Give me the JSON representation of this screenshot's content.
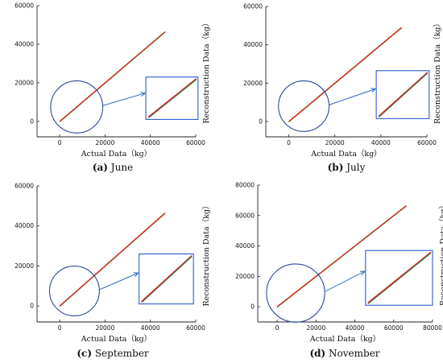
{
  "chart_data": [
    {
      "type": "line",
      "panel_letter": "(a)",
      "caption": "June",
      "xlabel": "Actual Data（kg）",
      "ylabel": "Reconstruction Data（kg）",
      "xlim": [
        -10000,
        60000
      ],
      "ylim": [
        -8000,
        60000
      ],
      "xticks": [
        0,
        20000,
        40000,
        60000
      ],
      "yticks": [
        0,
        20000,
        40000,
        60000
      ],
      "series": [
        {
          "x": [
            0,
            46500
          ],
          "values": [
            0,
            46500
          ],
          "color": "#d62b1f"
        }
      ],
      "inset_circle": {
        "cx": 7500,
        "cy": 7500,
        "r": 11500
      },
      "inset_box": {
        "x0": 38000,
        "x1": 61000,
        "y0": 1000,
        "y1": 23000
      }
    },
    {
      "type": "line",
      "panel_letter": "(b)",
      "caption": "July",
      "xlabel": "Actual Data（kg）",
      "ylabel": "Reconstruction Data（kg）",
      "xlim": [
        -10000,
        60000
      ],
      "ylim": [
        -8000,
        60000
      ],
      "xticks": [
        0,
        20000,
        40000,
        60000
      ],
      "yticks": [
        0,
        20000,
        40000,
        60000
      ],
      "series": [
        {
          "x": [
            0,
            49000
          ],
          "values": [
            0,
            49000
          ],
          "color": "#d62b1f"
        }
      ],
      "inset_circle": {
        "cx": 6500,
        "cy": 8000,
        "r": 11000
      },
      "inset_box": {
        "x0": 38000,
        "x1": 61000,
        "y0": 1500,
        "y1": 26500
      }
    },
    {
      "type": "line",
      "panel_letter": "(c)",
      "caption": "September",
      "xlabel": "Actual Data（kg）",
      "ylabel": "Reconstruction Data（kg）",
      "xlim": [
        -10000,
        60000
      ],
      "ylim": [
        -8000,
        60000
      ],
      "xticks": [
        0,
        20000,
        40000,
        60000
      ],
      "yticks": [
        0,
        20000,
        40000,
        60000
      ],
      "series": [
        {
          "x": [
            0,
            46500
          ],
          "values": [
            0,
            46500
          ],
          "color": "#d62b1f"
        }
      ],
      "inset_circle": {
        "cx": 6500,
        "cy": 7500,
        "r": 11000
      },
      "inset_box": {
        "x0": 35000,
        "x1": 59000,
        "y0": 1000,
        "y1": 26000
      }
    },
    {
      "type": "line",
      "panel_letter": "(d)",
      "caption": "November",
      "xlabel": "Actual Data（kg）",
      "ylabel": "Reconstruction Data（kg）",
      "xlim": [
        -10000,
        80000
      ],
      "ylim": [
        -10000,
        80000
      ],
      "xticks": [
        0,
        20000,
        40000,
        60000,
        80000
      ],
      "yticks": [
        0,
        20000,
        40000,
        60000,
        80000
      ],
      "series": [
        {
          "x": [
            0,
            66500
          ],
          "values": [
            0,
            66500
          ],
          "color": "#d62b1f"
        }
      ],
      "inset_circle": {
        "cx": 9500,
        "cy": 9000,
        "r": 15000
      },
      "inset_box": {
        "x0": 45500,
        "x1": 80000,
        "y0": 1000,
        "y1": 37000
      }
    }
  ]
}
